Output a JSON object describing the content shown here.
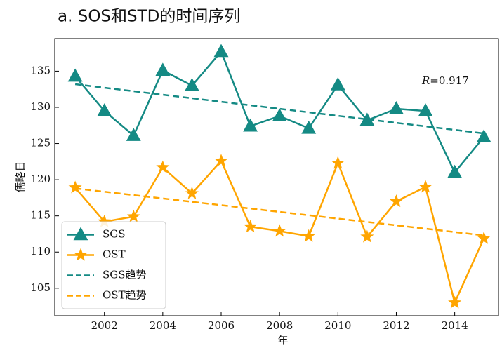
{
  "chart_data": {
    "type": "line",
    "title": "a. SOS和STD的时间序列",
    "x_label": "年",
    "y_label": "儒略日",
    "annotation": {
      "italic": "R",
      "text": "=0.917"
    },
    "xlim": [
      2000.3,
      2015.5
    ],
    "ylim": [
      101.2,
      139.5
    ],
    "xticks": [
      2002,
      2004,
      2006,
      2008,
      2010,
      2012,
      2014
    ],
    "yticks": [
      105,
      110,
      115,
      120,
      125,
      130,
      135
    ],
    "legend": "lower left",
    "series": [
      {
        "name": "SGS",
        "color": "#148a84",
        "marker": "triangle",
        "style": "solid",
        "x": [
          2001,
          2002,
          2003,
          2004,
          2005,
          2006,
          2007,
          2008,
          2009,
          2010,
          2011,
          2012,
          2013,
          2014,
          2015
        ],
        "values": [
          134.3,
          129.5,
          126.1,
          135.1,
          133.0,
          137.7,
          127.4,
          128.8,
          127.1,
          133.1,
          128.2,
          129.8,
          129.5,
          121.0,
          125.9
        ]
      },
      {
        "name": "OST",
        "color": "#ffa500",
        "marker": "star",
        "style": "solid",
        "x": [
          2001,
          2002,
          2003,
          2004,
          2005,
          2006,
          2007,
          2008,
          2009,
          2010,
          2011,
          2012,
          2013,
          2014,
          2015
        ],
        "values": [
          118.9,
          114.2,
          114.9,
          121.7,
          118.1,
          122.6,
          113.5,
          112.9,
          112.2,
          122.3,
          112.1,
          117.0,
          119.0,
          103.0,
          111.9
        ]
      },
      {
        "name": "SGS趋势",
        "color": "#148a84",
        "marker": "none",
        "style": "dashed",
        "x": [
          2001,
          2015
        ],
        "values": [
          133.2,
          126.4
        ]
      },
      {
        "name": "OST趋势",
        "color": "#ffa500",
        "marker": "none",
        "style": "dashed",
        "x": [
          2001,
          2015
        ],
        "values": [
          118.8,
          112.3
        ]
      }
    ]
  }
}
